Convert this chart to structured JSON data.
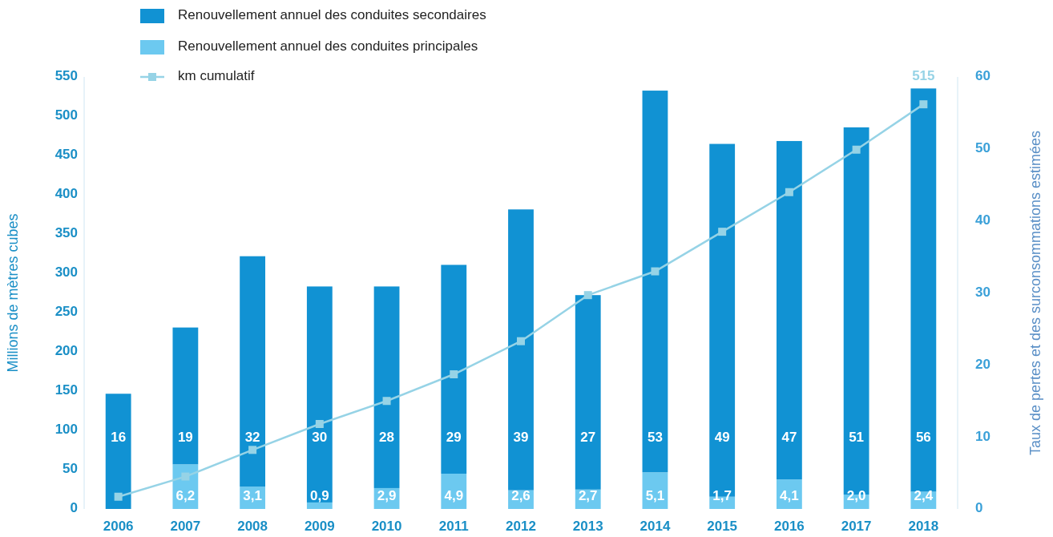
{
  "chart_data": {
    "type": "bar",
    "stacked": true,
    "categories": [
      "2006",
      "2007",
      "2008",
      "2009",
      "2010",
      "2011",
      "2012",
      "2013",
      "2014",
      "2015",
      "2016",
      "2017",
      "2018"
    ],
    "series": [
      {
        "name": "Renouvellement annuel des conduites principales",
        "axis": "y2",
        "color": "#6cc9f0",
        "values": [
          0,
          6.2,
          3.1,
          0.9,
          2.9,
          4.9,
          2.6,
          2.7,
          5.1,
          1.7,
          4.1,
          2.0,
          2.4
        ],
        "value_labels": [
          null,
          "6,2",
          "3,1",
          "0,9",
          "2,9",
          "4,9",
          "2,6",
          "2,7",
          "5,1",
          "1,7",
          "4,1",
          "2,0",
          "2,4"
        ]
      },
      {
        "name": "Renouvellement annuel des conduites secondaires",
        "axis": "y2",
        "color": "#1192d3",
        "values": [
          16,
          19,
          32,
          30,
          28,
          29,
          39,
          27,
          53,
          49,
          47,
          51,
          56
        ],
        "value_labels": [
          "16",
          "19",
          "32",
          "30",
          "28",
          "29",
          "39",
          "27",
          "53",
          "49",
          "47",
          "51",
          "56"
        ]
      },
      {
        "name": "km cumulatif",
        "type": "line",
        "axis": "y2",
        "color": "#96d3e6",
        "values": [
          1.7,
          4.5,
          8.2,
          11.8,
          15.0,
          18.7,
          23.3,
          29.7,
          33.0,
          38.5,
          44.0,
          49.9,
          56.2
        ]
      }
    ],
    "ylabel": "Millions de mètres cubes",
    "y2label": "Taux de pertes et des surconsommations estimées",
    "ylim": [
      0,
      550
    ],
    "yticks": [
      0,
      50,
      100,
      150,
      200,
      250,
      300,
      350,
      400,
      450,
      500,
      550
    ],
    "y2lim": [
      0,
      60
    ],
    "y2ticks": [
      0,
      10,
      20,
      30,
      40,
      50,
      60
    ],
    "annotations": [
      "515"
    ],
    "marker": "square",
    "legend": "top left",
    "grid": false
  }
}
